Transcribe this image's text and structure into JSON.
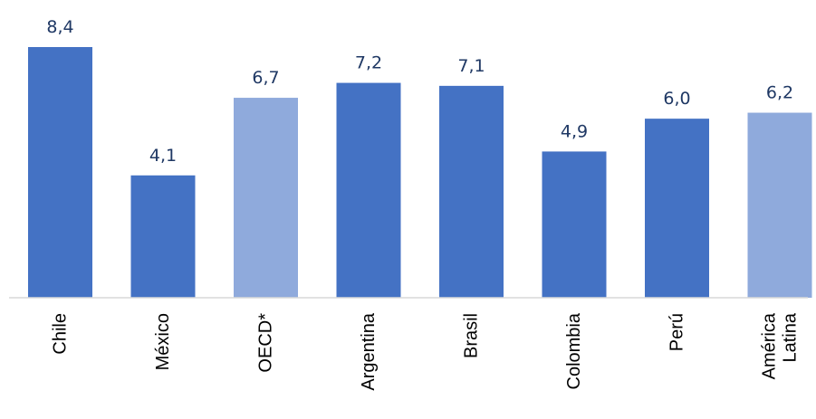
{
  "chart_data": {
    "type": "bar",
    "categories": [
      [
        "Chile"
      ],
      [
        "México"
      ],
      [
        "OECD*"
      ],
      [
        "Argentina"
      ],
      [
        "Brasil"
      ],
      [
        "Colombia"
      ],
      [
        "Perú"
      ],
      [
        "América",
        "Latina"
      ]
    ],
    "values": [
      8.4,
      4.1,
      6.7,
      7.2,
      7.1,
      4.9,
      6.0,
      6.2
    ],
    "value_labels": [
      "8,4",
      "4,1",
      "6,7",
      "7,2",
      "7,1",
      "4,9",
      "6,0",
      "6,2"
    ],
    "bar_colors": [
      "#4472c4",
      "#4472c4",
      "#8faadc",
      "#4472c4",
      "#4472c4",
      "#4472c4",
      "#4472c4",
      "#8faadc"
    ],
    "value_label_color": "#1f3864",
    "ylim": [
      0,
      8.4
    ],
    "title": "",
    "xlabel": "",
    "ylabel": "",
    "grid": false,
    "legend": "none"
  }
}
